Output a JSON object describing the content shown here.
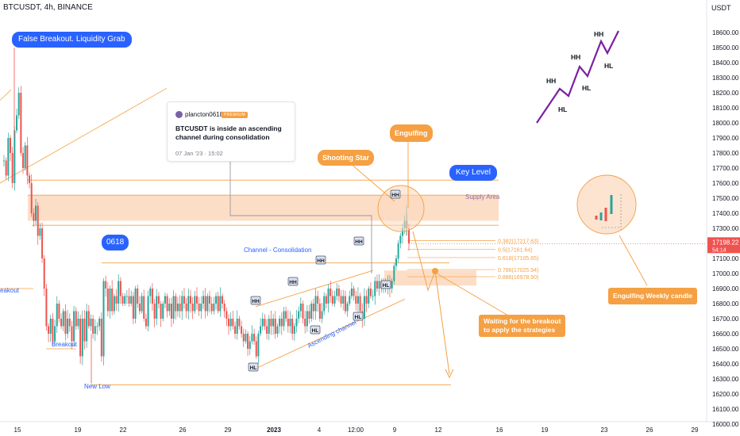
{
  "header": {
    "symbol": "BTCUSDT, 4h, BINANCE",
    "currency": "USDT"
  },
  "colors": {
    "up": "#26a69a",
    "down": "#ef5350",
    "orange": "#f5a043",
    "blue": "#2962ff",
    "zone": "#fbd8bd"
  },
  "chart_data": {
    "type": "candlestick",
    "ylim": [
      16000,
      18700
    ],
    "y_ticks": [
      16000,
      16100,
      16200,
      16300,
      16400,
      16500,
      16600,
      16700,
      16800,
      16900,
      17000,
      17100,
      17200,
      17300,
      17400,
      17500,
      17600,
      17700,
      17800,
      17900,
      18000,
      18100,
      18200,
      18300,
      18400,
      18500,
      18600
    ],
    "y_tick_labels": [
      "16000.00",
      "16100.00",
      "16200.00",
      "16300.00",
      "16400.00",
      "16500.00",
      "16600.00",
      "16700.00",
      "16800.00",
      "16900.00",
      "17000.00",
      "17100.00",
      "17200.00",
      "17300.00",
      "17400.00",
      "17500.00",
      "17600.00",
      "17700.00",
      "17800.00",
      "17900.00",
      "18000.00",
      "18100.00",
      "18200.00",
      "18300.00",
      "18400.00",
      "18500.00",
      "18600.00"
    ],
    "x_tick_labels": [
      "15",
      "19",
      "22",
      "26",
      "29",
      "2023",
      "4",
      "12:00",
      "9",
      "12",
      "16",
      "19",
      "23",
      "26",
      "29"
    ],
    "current_price": {
      "value": 17198.22,
      "label": "17198.22",
      "countdown": "54:14"
    },
    "price_path": [
      [
        17750,
        17650,
        17900,
        17800,
        17600,
        17950,
        18050,
        18200,
        17800,
        17700,
        17850,
        17650,
        17600,
        17400,
        17350,
        17450,
        17250,
        17300,
        17100,
        16900,
        16650,
        16600,
        16700,
        16550,
        16650,
        16800,
        16700,
        16650,
        16750,
        16600,
        16700,
        16650,
        16550,
        16750,
        16650,
        16700,
        16450,
        16700,
        16550,
        16750,
        16650,
        16700,
        16600,
        16650,
        16650,
        16700,
        16450
      ],
      [
        16950,
        16900,
        16750,
        16900,
        16750,
        16850,
        16800,
        16950,
        16850,
        16800,
        16850,
        16850,
        16800,
        16850,
        16700,
        16900,
        16800,
        16750,
        16850,
        16700,
        16650,
        16850,
        16900,
        16800,
        16700,
        16850,
        16800,
        16700,
        16800,
        16850,
        16750,
        16800,
        16700,
        16850,
        16750,
        16800,
        16750,
        16850,
        16800,
        16750,
        16850,
        16800,
        16750,
        16850,
        16800,
        16750,
        16800,
        16850,
        16750,
        16850,
        16800,
        16750,
        16800,
        16850,
        16750,
        16850,
        16800,
        16750,
        16700,
        16650,
        16700,
        16650,
        16600,
        16700,
        16650,
        16600,
        16550,
        16600,
        16500,
        16550,
        16600,
        16550,
        16450
      ],
      [
        16600,
        16650,
        16700,
        16650,
        16600,
        16700,
        16650,
        16700,
        16600,
        16650,
        16700,
        16650,
        16750,
        16700,
        16650,
        16700,
        16600,
        16650,
        16700,
        16750,
        16800,
        16700,
        16650,
        16750,
        16700,
        16800,
        16750,
        16850,
        16800,
        16700,
        16750,
        16850,
        16800,
        16900,
        16850,
        16800,
        16850,
        16900,
        16850,
        16800,
        16850,
        16750,
        16800,
        16850,
        16900,
        16850,
        16800,
        16850,
        16750,
        16700,
        16850,
        16800,
        16900,
        16850,
        16850,
        16950,
        16900,
        16950,
        16900,
        16950,
        16900,
        16950,
        16900,
        16950,
        17050,
        17100,
        17200,
        17250,
        17300,
        17350,
        17300,
        17200
      ]
    ],
    "segments": [
      {
        "from": [
          17800,
          18150
        ],
        "to": [
          16440,
          16650
        ]
      },
      {
        "from": [
          16470,
          16900
        ],
        "to": [
          16950,
          16950
        ]
      },
      {
        "from": [
          16950,
          16950
        ],
        "to": [
          16480,
          16550
        ]
      },
      {
        "from": [
          16450,
          16550
        ],
        "to": [
          17000,
          17250
        ]
      }
    ],
    "fib_levels": [
      {
        "value": 17217.63,
        "label": "0.382(17217.63)"
      },
      {
        "value": 17161.64,
        "label": "0.5(17161.64)"
      },
      {
        "value": 17105.65,
        "label": "0.618(17105.65)"
      },
      {
        "value": 17025.94,
        "label": "0.786(17025.94)"
      },
      {
        "value": 16978.5,
        "label": "0.886(16978.50)"
      }
    ],
    "zones": {
      "supply": [
        17350,
        17520
      ],
      "demand": [
        16920,
        17020
      ]
    },
    "key_level": 17620,
    "support_line": 16260,
    "consolidation_line": 17070,
    "annotations": {
      "false_breakout": "False Breakout. Liquidity Grab",
      "key_level": "Key Level",
      "supply_area": "Supply Area",
      "channel": "Channel - Consolidation",
      "ascending_channel": "Ascending channel",
      "label_0618": "0618",
      "breakout": "Breakout",
      "breakout_left": "eakout",
      "new_low": "New Low",
      "shooting_star": "Shooting Star",
      "engulfing": "Engulfing",
      "waiting": [
        "Waiting for the breakout",
        "to apply the strategies"
      ],
      "engulfing_weekly": "Engulfing Weekly candle"
    },
    "structure_tags": [
      "HH",
      "HH",
      "HH",
      "HH",
      "HH",
      "HL",
      "HL",
      "HL",
      "HL"
    ],
    "legend_diagram": {
      "highs": [
        "HH",
        "HH",
        "HH"
      ],
      "lows": [
        "HL",
        "HL",
        "HL"
      ]
    },
    "idea": {
      "author": "plancton0618",
      "badge": "PREMIUM",
      "text": "BTCUSDT is inside an ascending channel during consolidation",
      "date": "07 Jan '23 · 15:02"
    }
  }
}
